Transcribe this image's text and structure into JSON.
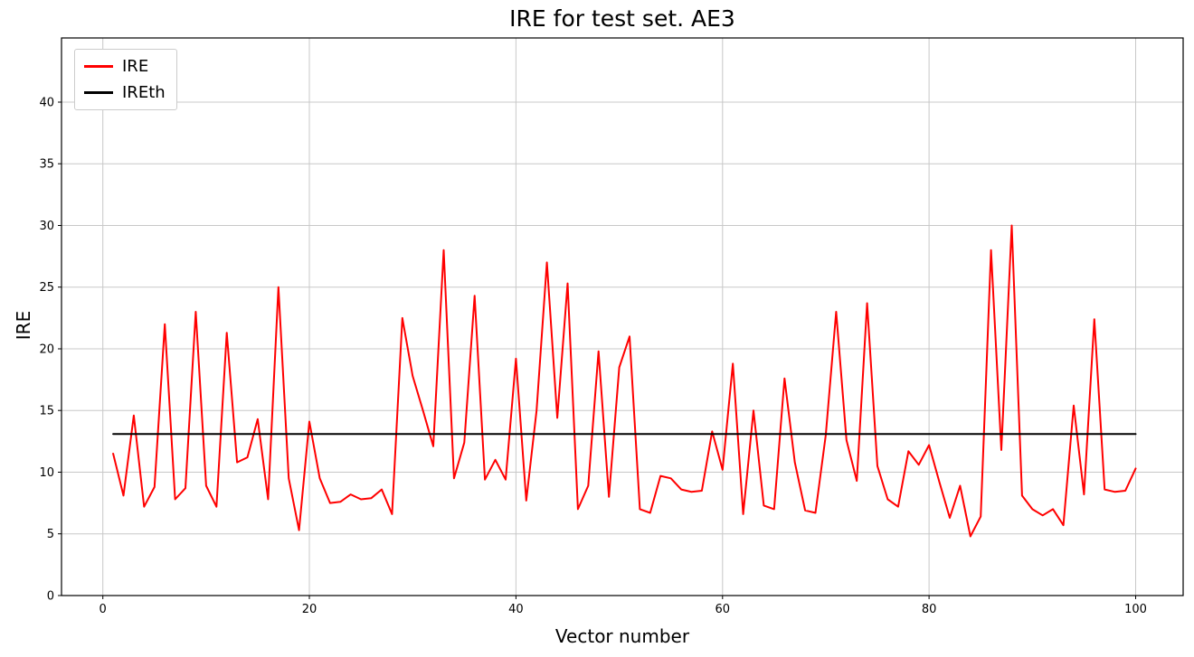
{
  "title": "IRE for test set. AE3",
  "xlabel": "Vector number",
  "ylabel": "IRE",
  "legend": [
    {
      "label": "IRE",
      "color": "#ff0000"
    },
    {
      "label": "IREth",
      "color": "#000000"
    }
  ],
  "chart_data": {
    "type": "line",
    "title": "IRE for test set. AE3",
    "xlabel": "Vector number",
    "ylabel": "IRE",
    "xlim": [
      -4,
      104.6
    ],
    "ylim": [
      0,
      45.2
    ],
    "xticks": [
      0,
      20,
      40,
      60,
      80,
      100
    ],
    "yticks": [
      0,
      5,
      10,
      15,
      20,
      25,
      30,
      35,
      40
    ],
    "grid": true,
    "legend_position": "upper-left",
    "x_start": 1,
    "series": [
      {
        "name": "IRE",
        "color": "#ff0000",
        "values": [
          11.5,
          8.1,
          14.6,
          7.2,
          8.8,
          22.0,
          7.8,
          8.7,
          23.0,
          8.9,
          7.2,
          21.3,
          10.8,
          11.2,
          14.3,
          7.8,
          25.0,
          9.5,
          5.3,
          14.1,
          9.5,
          7.5,
          7.6,
          8.2,
          7.8,
          7.9,
          8.6,
          6.6,
          22.5,
          17.8,
          15.0,
          12.1,
          28.0,
          9.5,
          12.4,
          24.3,
          9.4,
          11.0,
          9.4,
          19.2,
          7.7,
          15.0,
          27.0,
          14.4,
          25.3,
          7.0,
          8.9,
          19.8,
          8.0,
          18.5,
          21.0,
          7.0,
          6.7,
          9.7,
          9.5,
          8.6,
          8.4,
          8.5,
          13.3,
          10.2,
          18.8,
          6.6,
          15.0,
          7.3,
          7.0,
          17.6,
          10.8,
          6.9,
          6.7,
          13.0,
          23.0,
          12.6,
          9.3,
          23.7,
          10.5,
          7.8,
          7.2,
          11.7,
          10.6,
          12.2,
          9.2,
          6.3,
          8.9,
          4.8,
          6.4,
          28.0,
          11.8,
          30.0,
          8.1,
          7.0,
          6.5,
          7.0,
          5.7,
          15.4,
          8.2,
          22.4,
          8.6,
          8.4,
          8.5,
          10.3
        ]
      },
      {
        "name": "IREth",
        "color": "#000000",
        "x": [
          1,
          100
        ],
        "y": [
          13.1,
          13.1
        ]
      }
    ]
  }
}
